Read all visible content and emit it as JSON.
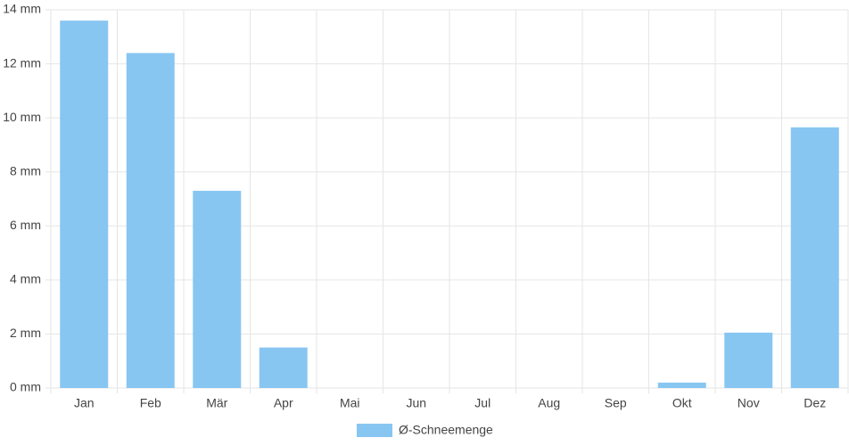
{
  "chart_data": {
    "type": "bar",
    "categories": [
      "Jan",
      "Feb",
      "Mär",
      "Apr",
      "Mai",
      "Jun",
      "Jul",
      "Aug",
      "Sep",
      "Okt",
      "Nov",
      "Dez"
    ],
    "series": [
      {
        "name": "Ø-Schneemenge",
        "color": "#88c6f2",
        "values": [
          13.6,
          12.4,
          7.3,
          1.5,
          0,
          0,
          0,
          0,
          0,
          0.2,
          2.05,
          9.65
        ]
      }
    ],
    "ylim": [
      0,
      14
    ],
    "yticks": [
      {
        "value": 0,
        "label": "0 mm"
      },
      {
        "value": 2,
        "label": "2 mm"
      },
      {
        "value": 4,
        "label": "4 mm"
      },
      {
        "value": 6,
        "label": "6 mm"
      },
      {
        "value": 8,
        "label": "8 mm"
      },
      {
        "value": 10,
        "label": "10 mm"
      },
      {
        "value": 12,
        "label": "12 mm"
      },
      {
        "value": 14,
        "label": "14 mm"
      }
    ],
    "grid": true,
    "legend": "bottom"
  }
}
